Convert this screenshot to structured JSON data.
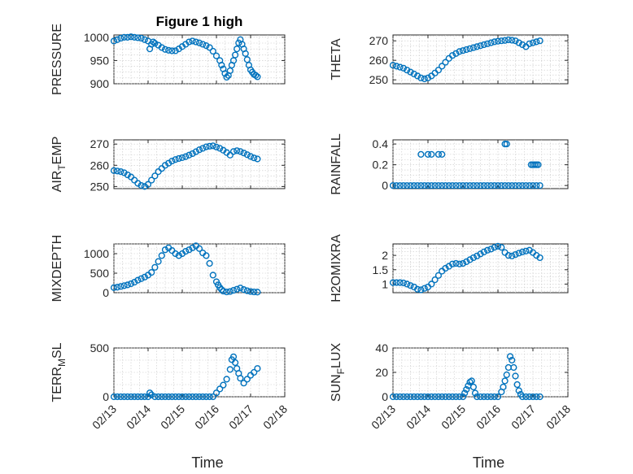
{
  "figure": {
    "title": "Figure 1 high",
    "marker_color": "#0072BD",
    "marker": "circle"
  },
  "chart_data": [
    {
      "type": "scatter",
      "ylabel": "PRESSURE",
      "xlabel": "",
      "xlim": [
        0,
        5
      ],
      "ylim": [
        900,
        1005
      ],
      "yticks": [
        900,
        950,
        1000
      ],
      "grid": true,
      "x": [
        0,
        0.1,
        0.2,
        0.3,
        0.4,
        0.5,
        0.6,
        0.7,
        0.8,
        0.9,
        1.0,
        1.05,
        1.1,
        1.15,
        1.2,
        1.3,
        1.4,
        1.5,
        1.6,
        1.7,
        1.8,
        1.9,
        2.0,
        2.1,
        2.2,
        2.3,
        2.4,
        2.5,
        2.6,
        2.7,
        2.8,
        2.9,
        3.0,
        3.1,
        3.15,
        3.2,
        3.25,
        3.3,
        3.35,
        3.4,
        3.45,
        3.5,
        3.55,
        3.6,
        3.65,
        3.7,
        3.75,
        3.8,
        3.85,
        3.9,
        3.95,
        4.0,
        4.05,
        4.1,
        4.15,
        4.2
      ],
      "y": [
        992,
        995,
        998,
        1000,
        1000,
        1001,
        1000,
        999,
        998,
        995,
        992,
        975,
        985,
        990,
        987,
        983,
        978,
        974,
        972,
        971,
        971,
        975,
        980,
        985,
        990,
        992,
        990,
        988,
        985,
        982,
        978,
        970,
        960,
        950,
        940,
        932,
        922,
        914,
        918,
        928,
        940,
        950,
        962,
        975,
        988,
        995,
        985,
        975,
        965,
        952,
        940,
        930,
        925,
        920,
        918,
        915
      ]
    },
    {
      "type": "scatter",
      "ylabel": "THETA",
      "xlabel": "",
      "xlim": [
        0,
        5
      ],
      "ylim": [
        248,
        273
      ],
      "yticks": [
        250,
        260,
        270
      ],
      "grid": true,
      "x": [
        0,
        0.1,
        0.2,
        0.3,
        0.4,
        0.5,
        0.6,
        0.7,
        0.8,
        0.9,
        1.0,
        1.1,
        1.2,
        1.3,
        1.4,
        1.5,
        1.6,
        1.7,
        1.8,
        1.9,
        2.0,
        2.1,
        2.2,
        2.3,
        2.4,
        2.5,
        2.6,
        2.7,
        2.8,
        2.9,
        3.0,
        3.1,
        3.2,
        3.3,
        3.4,
        3.5,
        3.6,
        3.7,
        3.8,
        3.9,
        4.0,
        4.1,
        4.2
      ],
      "y": [
        257.5,
        257,
        256.5,
        256,
        255,
        254,
        253,
        252,
        251,
        250.5,
        251,
        252,
        253.5,
        255,
        257,
        259,
        261,
        262.5,
        263.5,
        264.5,
        265,
        265.5,
        266,
        266.5,
        267,
        267.5,
        268,
        268.5,
        269,
        269.5,
        269.8,
        270,
        270.2,
        270.5,
        270.3,
        270,
        269,
        268,
        267,
        268.5,
        269,
        269.5,
        270
      ]
    },
    {
      "type": "scatter",
      "ylabel": "AIR_TEMP",
      "xlabel": "",
      "xlim": [
        0,
        5
      ],
      "ylim": [
        249,
        272
      ],
      "yticks": [
        250,
        260,
        270
      ],
      "grid": true,
      "x": [
        0,
        0.1,
        0.2,
        0.3,
        0.4,
        0.5,
        0.6,
        0.7,
        0.8,
        0.9,
        1.0,
        1.1,
        1.2,
        1.3,
        1.4,
        1.5,
        1.6,
        1.7,
        1.8,
        1.9,
        2.0,
        2.1,
        2.2,
        2.3,
        2.4,
        2.5,
        2.6,
        2.7,
        2.8,
        2.9,
        3.0,
        3.1,
        3.2,
        3.3,
        3.4,
        3.5,
        3.6,
        3.7,
        3.8,
        3.9,
        4.0,
        4.1,
        4.2
      ],
      "y": [
        257.5,
        257.3,
        257,
        256.5,
        255.5,
        254.5,
        253,
        251.5,
        250.5,
        250,
        251,
        253,
        255,
        257,
        258.5,
        260,
        261,
        262,
        262.7,
        263.2,
        263.6,
        264.1,
        264.8,
        265.5,
        266.4,
        267.3,
        268,
        268.7,
        269,
        269.2,
        268.6,
        268,
        267.1,
        266,
        264.8,
        266.5,
        266.9,
        266.5,
        265.8,
        265,
        264.2,
        263.5,
        263
      ]
    },
    {
      "type": "scatter",
      "ylabel": "RAINFALL",
      "xlabel": "",
      "xlim": [
        0,
        5
      ],
      "ylim": [
        -0.03,
        0.44
      ],
      "yticks": [
        0,
        0.2,
        0.4
      ],
      "grid": true,
      "x": [
        0,
        0.1,
        0.2,
        0.3,
        0.4,
        0.5,
        0.6,
        0.7,
        0.8,
        0.9,
        1.0,
        1.1,
        1.2,
        1.3,
        1.4,
        1.5,
        1.6,
        1.7,
        1.8,
        1.9,
        2.0,
        2.1,
        2.2,
        2.3,
        2.4,
        2.5,
        2.6,
        2.7,
        2.8,
        2.9,
        3.0,
        3.1,
        3.2,
        3.3,
        3.4,
        3.5,
        3.6,
        3.7,
        3.8,
        3.9,
        4.0,
        4.1,
        4.2,
        0.8,
        1.0,
        1.1,
        1.3,
        1.4,
        3.2,
        3.25,
        3.95,
        4.0,
        4.05,
        4.1,
        4.15
      ],
      "y": [
        0,
        0,
        0,
        0,
        0,
        0,
        0,
        0,
        0,
        0,
        0,
        0,
        0,
        0,
        0,
        0,
        0,
        0,
        0,
        0,
        0,
        0,
        0,
        0,
        0,
        0,
        0,
        0,
        0,
        0,
        0,
        0,
        0,
        0,
        0,
        0,
        0,
        0,
        0,
        0,
        0,
        0,
        0,
        0.3,
        0.3,
        0.3,
        0.3,
        0.3,
        0.4,
        0.4,
        0.2,
        0.2,
        0.2,
        0.2,
        0.2
      ]
    },
    {
      "type": "scatter",
      "ylabel": "MIXDEPTH",
      "xlabel": "",
      "xlim": [
        0,
        5
      ],
      "ylim": [
        0,
        1250
      ],
      "yticks": [
        0,
        500,
        1000
      ],
      "grid": true,
      "x": [
        0,
        0.1,
        0.2,
        0.3,
        0.4,
        0.5,
        0.6,
        0.7,
        0.8,
        0.9,
        1.0,
        1.1,
        1.2,
        1.3,
        1.4,
        1.5,
        1.6,
        1.7,
        1.8,
        1.9,
        2.0,
        2.1,
        2.2,
        2.3,
        2.4,
        2.5,
        2.6,
        2.7,
        2.8,
        2.9,
        3.0,
        3.05,
        3.1,
        3.15,
        3.2,
        3.3,
        3.4,
        3.5,
        3.6,
        3.7,
        3.8,
        3.9,
        4.0,
        4.1,
        4.2
      ],
      "y": [
        130,
        140,
        160,
        180,
        200,
        230,
        270,
        320,
        360,
        400,
        450,
        520,
        650,
        800,
        950,
        1100,
        1150,
        1080,
        1000,
        950,
        1000,
        1060,
        1100,
        1150,
        1200,
        1130,
        1020,
        950,
        750,
        450,
        280,
        200,
        130,
        80,
        40,
        20,
        30,
        60,
        90,
        120,
        80,
        50,
        30,
        20,
        15
      ]
    },
    {
      "type": "scatter",
      "ylabel": "H2OMIXRA",
      "xlabel": "",
      "xlim": [
        0,
        5
      ],
      "ylim": [
        0.7,
        2.4
      ],
      "yticks": [
        1,
        1.5,
        2
      ],
      "grid": true,
      "x": [
        0,
        0.1,
        0.2,
        0.3,
        0.4,
        0.5,
        0.6,
        0.7,
        0.8,
        0.9,
        1.0,
        1.1,
        1.2,
        1.3,
        1.4,
        1.5,
        1.6,
        1.7,
        1.8,
        1.9,
        2.0,
        2.1,
        2.2,
        2.3,
        2.4,
        2.5,
        2.6,
        2.7,
        2.8,
        2.9,
        3.0,
        3.1,
        3.2,
        3.3,
        3.4,
        3.5,
        3.6,
        3.7,
        3.8,
        3.9,
        4.0,
        4.1,
        4.2
      ],
      "y": [
        1.05,
        1.05,
        1.05,
        1.04,
        1.0,
        0.95,
        0.9,
        0.82,
        0.8,
        0.85,
        0.9,
        1.0,
        1.15,
        1.3,
        1.45,
        1.55,
        1.62,
        1.7,
        1.72,
        1.7,
        1.72,
        1.78,
        1.85,
        1.92,
        1.98,
        2.05,
        2.12,
        2.18,
        2.22,
        2.28,
        2.32,
        2.28,
        2.1,
        2.0,
        1.98,
        2.03,
        2.08,
        2.12,
        2.15,
        2.18,
        2.1,
        2.0,
        1.92
      ]
    },
    {
      "type": "scatter",
      "ylabel": "TERR_MSL",
      "xlabel": "Time",
      "xlim": [
        0,
        5
      ],
      "xticks": [
        0,
        1,
        2,
        3,
        4,
        5
      ],
      "xticklabels": [
        "02/13",
        "02/14",
        "02/15",
        "02/16",
        "02/17",
        "02/18"
      ],
      "ylim": [
        0,
        500
      ],
      "yticks": [
        0,
        500
      ],
      "grid": true,
      "x": [
        0,
        0.1,
        0.2,
        0.3,
        0.4,
        0.5,
        0.6,
        0.7,
        0.8,
        0.9,
        1.0,
        1.05,
        1.1,
        1.2,
        1.3,
        1.4,
        1.5,
        1.6,
        1.7,
        1.8,
        1.9,
        2.0,
        2.1,
        2.2,
        2.3,
        2.4,
        2.5,
        2.6,
        2.7,
        2.8,
        2.9,
        3.0,
        3.1,
        3.2,
        3.3,
        3.4,
        3.45,
        3.5,
        3.55,
        3.6,
        3.65,
        3.7,
        3.8,
        3.9,
        4.0,
        4.1,
        4.2
      ],
      "y": [
        0,
        0,
        0,
        0,
        0,
        0,
        0,
        0,
        0,
        0,
        0,
        40,
        20,
        0,
        0,
        0,
        0,
        0,
        0,
        0,
        0,
        0,
        0,
        0,
        0,
        0,
        0,
        0,
        0,
        0,
        0,
        40,
        80,
        120,
        180,
        280,
        380,
        410,
        350,
        290,
        240,
        190,
        140,
        180,
        220,
        250,
        290
      ]
    },
    {
      "type": "scatter",
      "ylabel": "SUN_FLUX",
      "xlabel": "Time",
      "xlim": [
        0,
        5
      ],
      "xticks": [
        0,
        1,
        2,
        3,
        4,
        5
      ],
      "xticklabels": [
        "02/13",
        "02/14",
        "02/15",
        "02/16",
        "02/17",
        "02/18"
      ],
      "ylim": [
        0,
        40
      ],
      "yticks": [
        0,
        20,
        40
      ],
      "grid": true,
      "x": [
        0,
        0.1,
        0.2,
        0.3,
        0.4,
        0.5,
        0.6,
        0.7,
        0.8,
        0.9,
        1.0,
        1.1,
        1.2,
        1.3,
        1.4,
        1.5,
        1.6,
        1.7,
        1.8,
        1.9,
        2.0,
        2.05,
        2.1,
        2.15,
        2.2,
        2.25,
        2.3,
        2.35,
        2.4,
        2.5,
        2.6,
        2.7,
        2.8,
        2.9,
        3.0,
        3.1,
        3.15,
        3.2,
        3.25,
        3.3,
        3.35,
        3.4,
        3.45,
        3.5,
        3.55,
        3.6,
        3.65,
        3.7,
        3.8,
        3.9,
        4.0,
        4.1,
        4.2
      ],
      "y": [
        0,
        0,
        0,
        0,
        0,
        0,
        0,
        0,
        0,
        0,
        0,
        0,
        0,
        0,
        0,
        0,
        0,
        0,
        0,
        0,
        0,
        3,
        6,
        9,
        12,
        13,
        8,
        3,
        0,
        0,
        0,
        0,
        0,
        0,
        0,
        4,
        8,
        13,
        18,
        24,
        33,
        30,
        24,
        17,
        10,
        5,
        2,
        0,
        0,
        0,
        0,
        0,
        0
      ]
    }
  ]
}
